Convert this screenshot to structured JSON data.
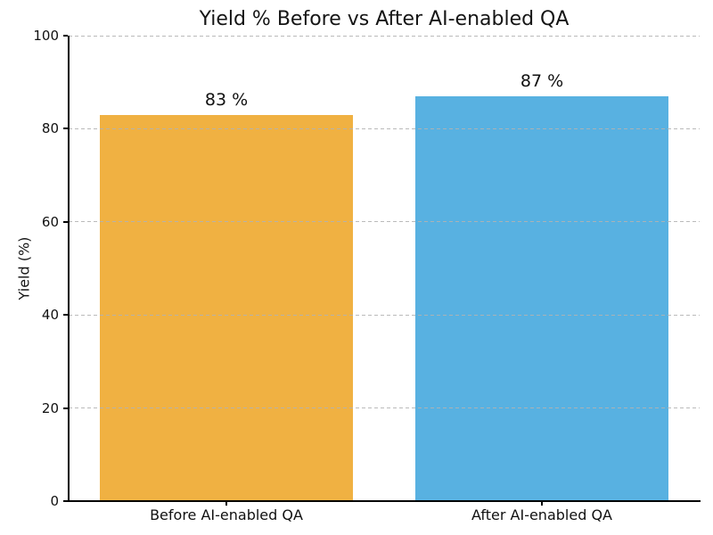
{
  "title": "Yield % Before vs After AI-enabled QA",
  "chart_data": {
    "type": "bar",
    "title": "Yield % Before vs After AI-enabled QA",
    "categories": [
      "Before AI-enabled QA",
      "After AI-enabled QA"
    ],
    "values": [
      83,
      87
    ],
    "bar_value_labels": [
      "83 %",
      "87 %"
    ],
    "bar_colors": [
      "#F0B142",
      "#58B1E1"
    ],
    "xlabel": "",
    "ylabel": "Yield (%)",
    "ylim": [
      0,
      100
    ],
    "yticks": [
      0,
      20,
      40,
      60,
      80,
      100
    ],
    "grid": "horizontal-dashed",
    "gridline_color": "#b2b2b2",
    "legend_position": "none",
    "background_color": "#ffffff"
  }
}
